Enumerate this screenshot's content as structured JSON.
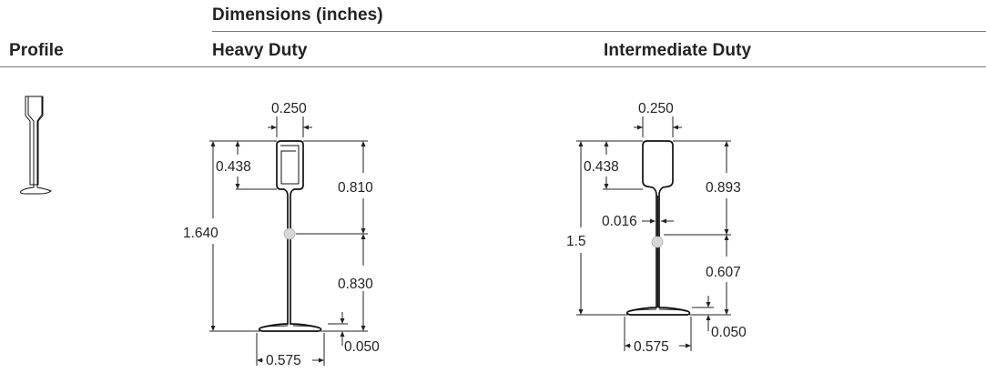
{
  "header": {
    "group_label": "Dimensions (inches)",
    "col_profile": "Profile",
    "col_heavy": "Heavy Duty",
    "col_intermediate": "Intermediate Duty"
  },
  "heavy": {
    "top_width": "0.250",
    "head_depth": "0.438",
    "upper_to_center": "0.810",
    "total_height": "1.640",
    "lower_to_center": "0.830",
    "flange_thickness": "0.050",
    "flange_width": "0.575"
  },
  "intermediate": {
    "top_width": "0.250",
    "head_depth": "0.438",
    "upper_to_center": "0.893",
    "web_thickness": "0.016",
    "total_height": "1.5",
    "lower_to_center": "0.607",
    "flange_thickness": "0.050",
    "flange_width": "0.575"
  }
}
